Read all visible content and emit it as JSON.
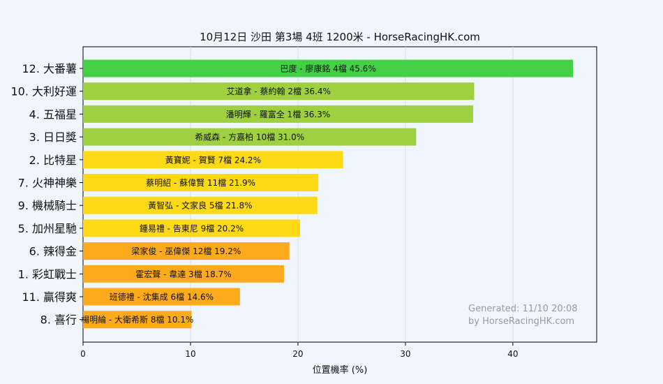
{
  "chart_data": {
    "type": "bar",
    "orientation": "horizontal",
    "title": "10月12日  沙田  第3場  4班  1200米 - HorseRacingHK.com",
    "xlabel": "位置機率 (%)",
    "ylabel": "",
    "xlim": [
      0,
      47.8
    ],
    "xticks": [
      0,
      10,
      20,
      30,
      40
    ],
    "grid": true,
    "categories": [
      "12. 大番薯",
      "10. 大利好運",
      "4. 五福星",
      "3. 日日獎",
      "2. 比特星",
      "7. 火神神樂",
      "9. 機械騎士",
      "5. 加州星馳",
      "6. 辣得金",
      "1. 彩虹戰士",
      "11. 贏得爽",
      "8. 喜行"
    ],
    "values": [
      45.6,
      36.4,
      36.3,
      31.0,
      24.2,
      21.9,
      21.8,
      20.2,
      19.2,
      18.7,
      14.6,
      10.1
    ],
    "bar_labels": [
      "巴度 - 廖康銘 4檔  45.6%",
      "艾道拿 - 蔡約翰 2檔  36.4%",
      "潘明輝 - 羅富全 1檔  36.3%",
      "希威森 - 方嘉柏 10檔  31.0%",
      "黃寶妮 - 賀賢 7檔  24.2%",
      "蔡明紹 - 蘇偉賢 11檔  21.9%",
      "黃智弘 - 文家良 5檔  21.8%",
      "鍾易禮 - 告東尼 9檔  20.2%",
      "梁家俊 - 巫偉傑 12檔  19.2%",
      "霍宏聲 - 韋達 3檔  18.7%",
      "班德禮 - 沈集成 6檔  14.6%",
      "楊明綸 - 大衛希斯 8檔  10.1%"
    ],
    "bar_colors": [
      "#43cf46",
      "#9fd040",
      "#9fd040",
      "#9fd040",
      "#fdd916",
      "#fdd916",
      "#fdd916",
      "#fdd916",
      "#fdab1c",
      "#fdab1c",
      "#fdab1c",
      "#fdab1c"
    ],
    "annotation": [
      "Generated: 11/10 20:08",
      "by HorseRacingHK.com"
    ]
  }
}
